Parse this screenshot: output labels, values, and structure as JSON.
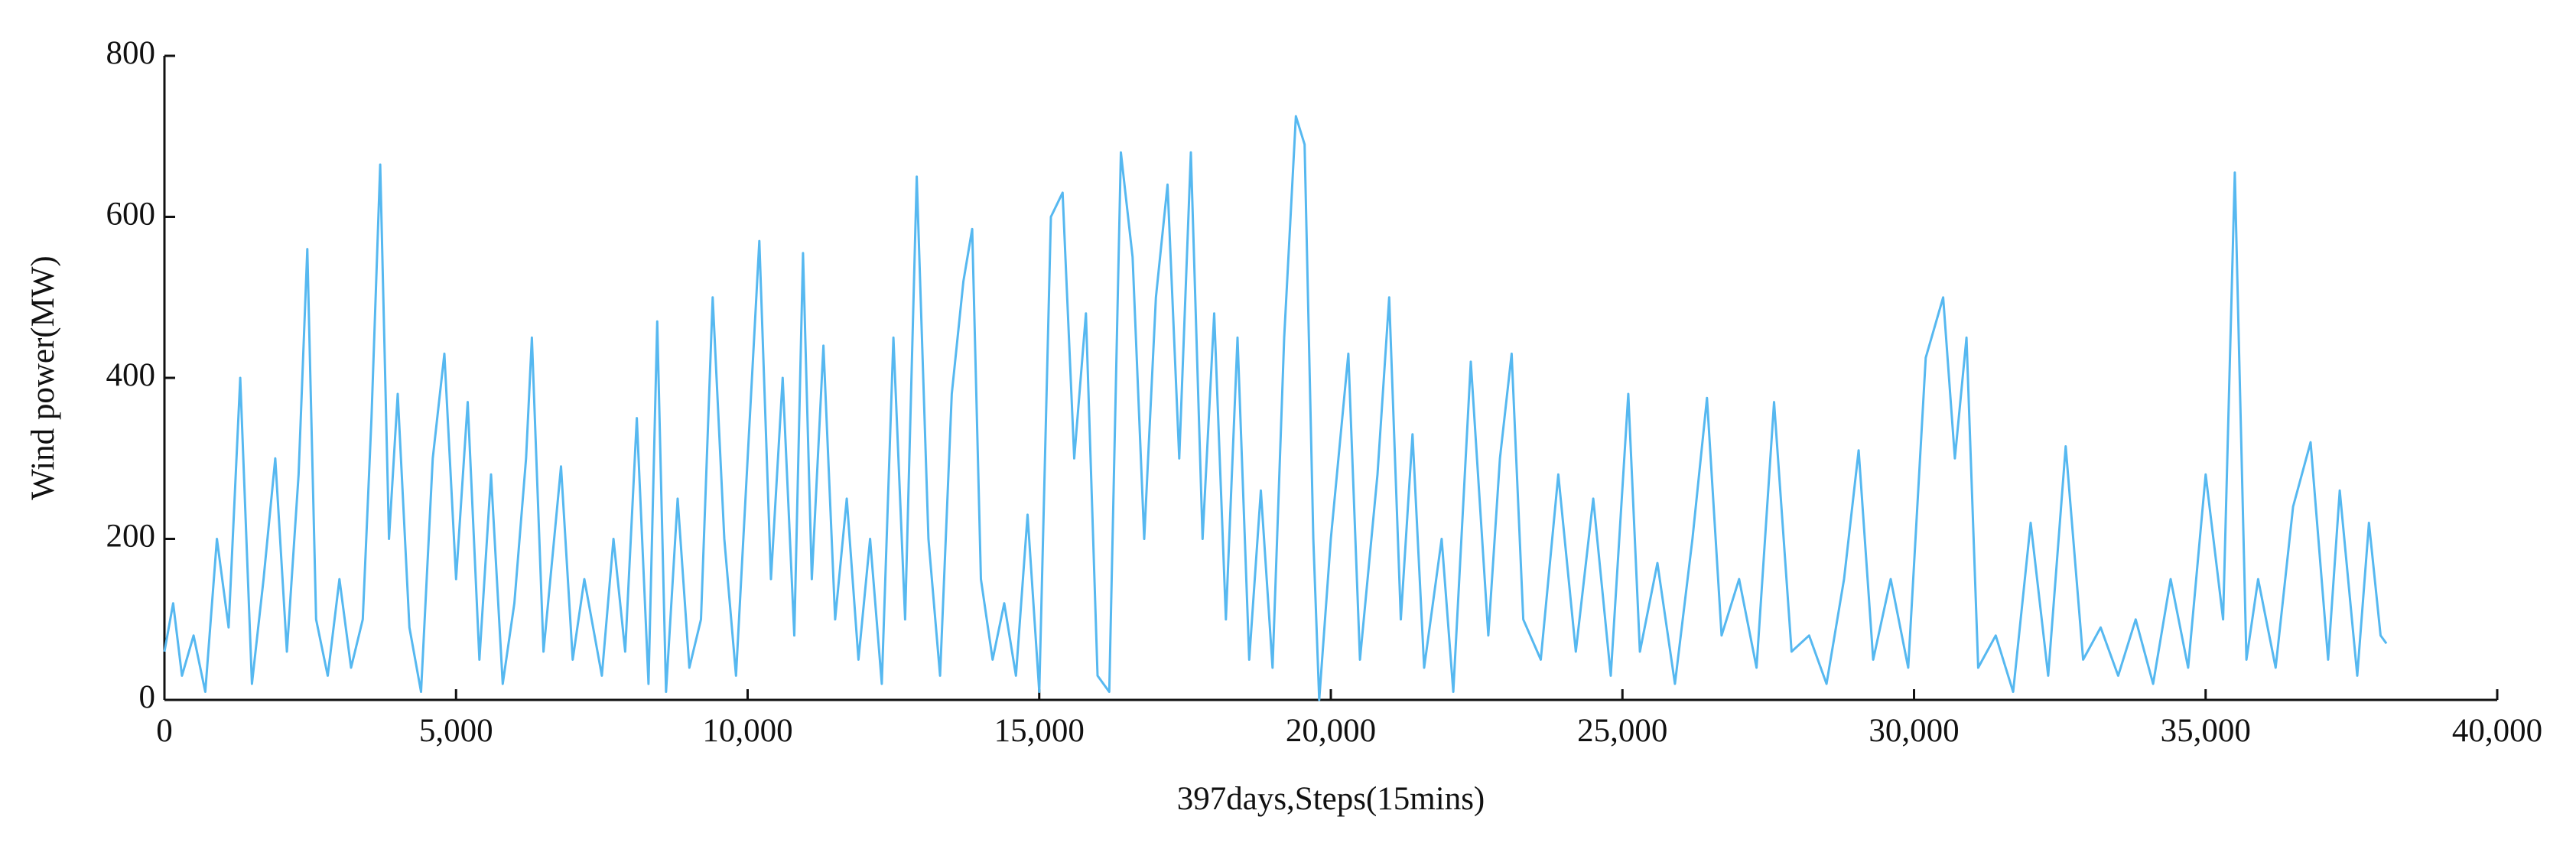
{
  "chart_data": {
    "type": "line",
    "xlabel": "397days,Steps(15mins)",
    "ylabel": "Wind power(MW)",
    "xlim": [
      0,
      40000
    ],
    "xticks": [
      0,
      {
        "value": 5000,
        "label": "5,000"
      },
      {
        "value": 10000,
        "label": "10,000"
      },
      {
        "value": 15000,
        "label": "15,000"
      },
      {
        "value": 20000,
        "label": "20,000"
      },
      {
        "value": 25000,
        "label": "25,000"
      },
      {
        "value": 30000,
        "label": "30,000"
      },
      {
        "value": 35000,
        "label": "35,000"
      },
      {
        "value": 40000,
        "label": "40,000"
      }
    ],
    "ylim": [
      0,
      800
    ],
    "yticks": [
      0,
      200,
      400,
      600,
      800
    ],
    "x": [
      0,
      150,
      300,
      500,
      700,
      900,
      1100,
      1300,
      1500,
      1700,
      1900,
      2100,
      2300,
      2450,
      2600,
      2800,
      3000,
      3200,
      3400,
      3550,
      3700,
      3850,
      4000,
      4200,
      4400,
      4600,
      4800,
      5000,
      5200,
      5400,
      5600,
      5800,
      6000,
      6200,
      6300,
      6500,
      6800,
      7000,
      7200,
      7500,
      7700,
      7900,
      8100,
      8300,
      8450,
      8600,
      8800,
      9000,
      9200,
      9400,
      9600,
      9800,
      10000,
      10200,
      10400,
      10600,
      10800,
      10950,
      11100,
      11300,
      11500,
      11700,
      11900,
      12100,
      12300,
      12500,
      12700,
      12900,
      13100,
      13300,
      13500,
      13700,
      13850,
      14000,
      14200,
      14400,
      14600,
      14800,
      15000,
      15200,
      15400,
      15600,
      15800,
      16000,
      16200,
      16400,
      16600,
      16800,
      17000,
      17200,
      17400,
      17600,
      17800,
      18000,
      18200,
      18400,
      18600,
      18800,
      19000,
      19200,
      19400,
      19550,
      19700,
      19800,
      20000,
      20300,
      20500,
      20800,
      21000,
      21200,
      21400,
      21600,
      21900,
      22100,
      22400,
      22700,
      22900,
      23100,
      23300,
      23600,
      23900,
      24200,
      24500,
      24800,
      25100,
      25300,
      25600,
      25900,
      26200,
      26450,
      26700,
      27000,
      27300,
      27600,
      27900,
      28200,
      28500,
      28800,
      29050,
      29300,
      29600,
      29900,
      30200,
      30500,
      30700,
      30900,
      31100,
      31400,
      31700,
      32000,
      32300,
      32600,
      32900,
      33200,
      33500,
      33800,
      34100,
      34400,
      34700,
      35000,
      35300,
      35500,
      35700,
      35900,
      36200,
      36500,
      36800,
      37100,
      37300,
      37600,
      37800,
      38000,
      38100
    ],
    "series": [
      {
        "color": "#56b8f0",
        "values": [
          60,
          120,
          30,
          80,
          10,
          200,
          90,
          400,
          20,
          150,
          300,
          60,
          280,
          560,
          100,
          30,
          150,
          40,
          100,
          350,
          665,
          200,
          380,
          90,
          10,
          300,
          430,
          150,
          370,
          50,
          280,
          20,
          120,
          300,
          450,
          60,
          290,
          50,
          150,
          30,
          200,
          60,
          350,
          20,
          470,
          10,
          250,
          40,
          100,
          500,
          200,
          30,
          300,
          570,
          150,
          400,
          80,
          555,
          150,
          440,
          100,
          250,
          50,
          200,
          20,
          450,
          100,
          650,
          200,
          30,
          380,
          520,
          585,
          150,
          50,
          120,
          30,
          230,
          10,
          600,
          630,
          300,
          480,
          30,
          10,
          680,
          550,
          200,
          500,
          640,
          300,
          680,
          200,
          480,
          100,
          450,
          50,
          260,
          40,
          450,
          725,
          690,
          200,
          0,
          200,
          430,
          50,
          280,
          500,
          100,
          330,
          40,
          200,
          10,
          420,
          80,
          300,
          430,
          100,
          50,
          280,
          60,
          250,
          30,
          380,
          60,
          170,
          20,
          200,
          375,
          80,
          150,
          40,
          370,
          60,
          80,
          20,
          150,
          310,
          50,
          150,
          40,
          425,
          500,
          300,
          450,
          40,
          80,
          10,
          220,
          30,
          315,
          50,
          90,
          30,
          100,
          20,
          150,
          40,
          280,
          100,
          655,
          50,
          150,
          40,
          240,
          320,
          50,
          260,
          30,
          220,
          80,
          70
        ]
      }
    ]
  }
}
